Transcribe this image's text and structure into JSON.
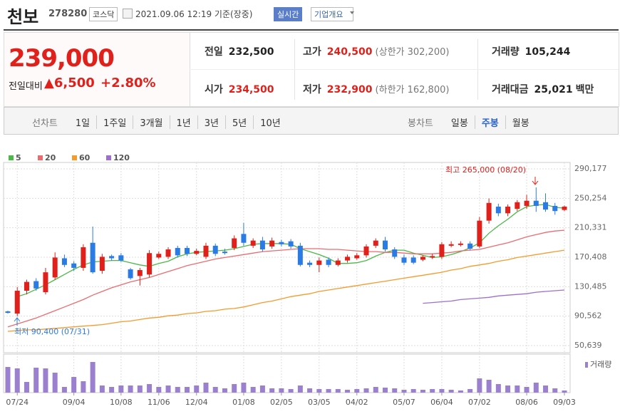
{
  "header": {
    "name": "천보",
    "code": "278280",
    "market": "코스닥",
    "datetime": "2021.09.06 12:19 기준(장중)",
    "realtime": "실시간",
    "company_info": "기업개요"
  },
  "quote": {
    "price": "239,000",
    "change_label": "전일대비",
    "change": "▲6,500",
    "change_rate": "+2.80%",
    "fields": [
      {
        "label": "전일",
        "value": "232,500",
        "color": "#222"
      },
      {
        "label": "고가",
        "value": "240,500",
        "extra": "(상한가 302,200)",
        "color": "#e0201b"
      },
      {
        "label": "거래량",
        "value": "105,244",
        "color": "#222"
      },
      {
        "label": "시가",
        "value": "234,500",
        "color": "#e0201b"
      },
      {
        "label": "저가",
        "value": "232,900",
        "extra": "(하한가 162,800)",
        "color": "#e0201b"
      },
      {
        "label": "거래대금",
        "value": "25,021",
        "unit": "백만",
        "color": "#222"
      }
    ]
  },
  "tabs": {
    "line_label": "선차트",
    "line_periods": [
      "1일",
      "1주일",
      "3개월",
      "1년",
      "3년",
      "5년",
      "10년"
    ],
    "candle_label": "봉차트",
    "candle_periods": [
      "일봉",
      "주봉",
      "월봉"
    ],
    "selected": 1
  },
  "chart_data": {
    "type": "candlestick",
    "categories": [
      null,
      "07/24",
      null,
      null,
      null,
      null,
      null,
      "09/04",
      null,
      null,
      null,
      null,
      "10/08",
      null,
      null,
      null,
      "11/06",
      null,
      null,
      null,
      "12/04",
      null,
      null,
      null,
      null,
      "01/08",
      null,
      null,
      null,
      "02/05",
      null,
      null,
      null,
      "03/05",
      null,
      null,
      null,
      "04/02",
      null,
      null,
      null,
      null,
      "05/07",
      null,
      null,
      null,
      "06/04",
      null,
      null,
      null,
      "07/02",
      null,
      null,
      null,
      null,
      "08/06",
      null,
      null,
      null,
      "09/03"
    ],
    "open": [
      97000,
      94000,
      125000,
      138000,
      123000,
      143000,
      169000,
      162000,
      156000,
      190000,
      152000,
      172000,
      173000,
      154000,
      145000,
      147000,
      170000,
      171000,
      183000,
      183000,
      175000,
      171000,
      186000,
      178000,
      183000,
      202000,
      186000,
      193000,
      185000,
      191000,
      192000,
      186000,
      163000,
      160000,
      167000,
      160000,
      166000,
      169000,
      173000,
      186000,
      193000,
      181000,
      170000,
      170000,
      167000,
      170000,
      171000,
      186000,
      187000,
      189000,
      185000,
      220000,
      239000,
      230000,
      236000,
      240000,
      247000,
      245000,
      240000,
      234500
    ],
    "high": [
      98000,
      130000,
      140000,
      142000,
      156000,
      177000,
      174000,
      165000,
      188000,
      212000,
      175000,
      174000,
      176000,
      156000,
      156000,
      180000,
      178000,
      184000,
      186000,
      186000,
      182000,
      190000,
      189000,
      182000,
      200000,
      217000,
      196000,
      198000,
      197000,
      194000,
      195000,
      190000,
      166000,
      170000,
      170000,
      169000,
      174000,
      176000,
      188000,
      196000,
      198000,
      184000,
      174000,
      173000,
      173000,
      175000,
      191000,
      192000,
      192000,
      192000,
      225000,
      250000,
      243000,
      242000,
      248000,
      255000,
      265000,
      257000,
      244000,
      240500
    ],
    "low": [
      94000,
      90400,
      120000,
      125000,
      120000,
      140000,
      157000,
      152000,
      152000,
      148000,
      148000,
      166000,
      164000,
      140000,
      132000,
      143000,
      168000,
      168000,
      170000,
      172000,
      173000,
      168000,
      172000,
      174000,
      180000,
      186000,
      183000,
      178000,
      182000,
      185000,
      182000,
      158000,
      157000,
      150000,
      157000,
      158000,
      163000,
      167000,
      170000,
      183000,
      178000,
      168000,
      160000,
      161000,
      165000,
      168000,
      168000,
      184000,
      185000,
      180000,
      183000,
      216000,
      226000,
      226000,
      233000,
      236000,
      232000,
      232000,
      228000,
      232900
    ],
    "close": [
      95000,
      125000,
      137000,
      128000,
      150000,
      170000,
      160000,
      156000,
      184000,
      150000,
      171000,
      169000,
      166000,
      142000,
      153000,
      176000,
      175000,
      181000,
      173000,
      175000,
      179000,
      186000,
      175000,
      176000,
      196000,
      190000,
      193000,
      181000,
      193000,
      188000,
      185000,
      160000,
      160000,
      166000,
      160000,
      166000,
      171000,
      173000,
      185000,
      193000,
      181000,
      171000,
      163000,
      163000,
      171000,
      172000,
      188000,
      188000,
      189000,
      182000,
      220000,
      244000,
      230000,
      239000,
      245000,
      247000,
      240000,
      235000,
      233000,
      239000
    ],
    "up_color": "#e0201b",
    "down_color": "#2a7be4",
    "series": [
      {
        "name": "5",
        "color": "#4cb848",
        "values": [
          null,
          117000,
          121000,
          127000,
          133000,
          140000,
          147000,
          154000,
          160000,
          164000,
          165000,
          166000,
          166000,
          163000,
          160000,
          158000,
          162000,
          165000,
          171000,
          175000,
          177000,
          178000,
          179000,
          180000,
          182000,
          185000,
          188000,
          189000,
          189000,
          189000,
          188000,
          182000,
          178000,
          174000,
          169000,
          162000,
          162000,
          163000,
          166000,
          172000,
          177000,
          180000,
          180000,
          176000,
          173000,
          170000,
          171000,
          174000,
          178000,
          183000,
          190000,
          203000,
          213000,
          222000,
          232000,
          239000,
          241000,
          242000,
          238000,
          237000
        ]
      },
      {
        "name": "20",
        "color": "#ec6b6f",
        "values": [
          76000,
          80000,
          84000,
          88000,
          93000,
          98000,
          103000,
          108000,
          113000,
          119000,
          124000,
          129000,
          133000,
          137000,
          140000,
          143000,
          147000,
          151000,
          155000,
          159000,
          162000,
          165000,
          168000,
          170000,
          172000,
          174000,
          176000,
          178000,
          179000,
          180000,
          181000,
          182000,
          182000,
          182000,
          181000,
          181000,
          180000,
          179000,
          178000,
          178000,
          177000,
          177000,
          176000,
          175000,
          175000,
          175000,
          176000,
          177000,
          179000,
          180000,
          181000,
          184000,
          187000,
          190000,
          194000,
          198000,
          201000,
          204000,
          206000,
          207000
        ]
      },
      {
        "name": "60",
        "color": "#f59a2b",
        "values": [
          70000,
          71000,
          72000,
          72000,
          73000,
          74000,
          75000,
          76000,
          77000,
          78000,
          79000,
          81000,
          83000,
          84000,
          86000,
          88000,
          89000,
          91000,
          92000,
          94000,
          95000,
          97000,
          98000,
          100000,
          101000,
          103000,
          106000,
          109000,
          111000,
          114000,
          117000,
          119000,
          121000,
          124000,
          126000,
          128000,
          130000,
          132000,
          134000,
          136000,
          138000,
          140000,
          142000,
          144000,
          146000,
          148000,
          150000,
          153000,
          155000,
          158000,
          160000,
          162000,
          165000,
          167000,
          170000,
          172000,
          174000,
          176000,
          178000,
          180000
        ]
      },
      {
        "name": "120",
        "color": "#9d6fcf",
        "values": [
          null,
          null,
          null,
          null,
          null,
          null,
          null,
          null,
          null,
          null,
          null,
          null,
          null,
          null,
          null,
          null,
          null,
          null,
          null,
          null,
          null,
          null,
          null,
          null,
          null,
          null,
          null,
          null,
          null,
          null,
          null,
          null,
          null,
          null,
          null,
          null,
          null,
          null,
          null,
          null,
          null,
          null,
          null,
          null,
          108000,
          109000,
          110000,
          111000,
          113000,
          114000,
          115000,
          116000,
          118000,
          119000,
          120000,
          121000,
          123000,
          124000,
          125000,
          126000
        ]
      }
    ],
    "ylim": [
      50639,
      290177
    ],
    "yticks": [
      {
        "value": 50639,
        "label": "50,639"
      },
      {
        "value": 90562,
        "label": "90,562"
      },
      {
        "value": 130485,
        "label": "130,485"
      },
      {
        "value": 170408,
        "label": "170,408"
      },
      {
        "value": 210331,
        "label": "210,331"
      },
      {
        "value": 250254,
        "label": "250,254"
      },
      {
        "value": 290177,
        "label": "290,177"
      }
    ],
    "grid": true,
    "annotations": [
      "최고 265,000 (08/20)",
      "최저 90,400 (07/31)"
    ],
    "volume": {
      "name": "거래량",
      "color": "#9a80cf",
      "ylim": [
        0,
        50
      ],
      "values": [
        36,
        34,
        15,
        35,
        34,
        28,
        8,
        22,
        16,
        43,
        10,
        8,
        10,
        10,
        10,
        12,
        8,
        10,
        8,
        8,
        10,
        14,
        8,
        6,
        12,
        14,
        8,
        10,
        6,
        6,
        5,
        10,
        6,
        5,
        5,
        5,
        4,
        5,
        6,
        8,
        7,
        6,
        4,
        5,
        4,
        5,
        5,
        4,
        3,
        5,
        20,
        18,
        12,
        10,
        10,
        8,
        14,
        10,
        6,
        3
      ]
    }
  }
}
